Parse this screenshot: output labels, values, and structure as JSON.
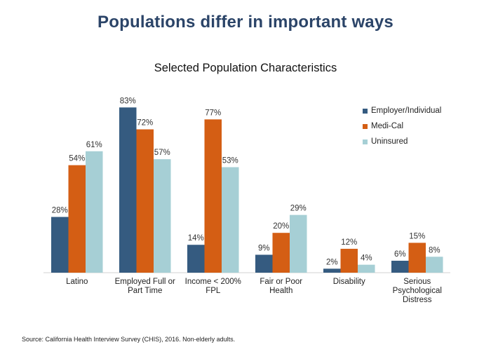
{
  "slide_title": "Populations differ in important ways",
  "source": "Source: California Health Interview Survey (CHIS), 2016. Non-elderly adults.",
  "colors": {
    "employer": "#355b80",
    "medical": "#d45e14",
    "uninsured": "#a6cfd5"
  },
  "chart_data": {
    "type": "bar",
    "title": "Selected Population Characteristics",
    "categories": [
      "Latino",
      "Employed Full or\nPart Time",
      "Income < 200%\nFPL",
      "Fair or Poor\nHealth",
      "Disability",
      "Serious\nPsychological\nDistress"
    ],
    "series": [
      {
        "name": "Employer/Individual",
        "values": [
          28,
          83,
          14,
          9,
          2,
          6
        ]
      },
      {
        "name": "Medi-Cal",
        "values": [
          54,
          72,
          77,
          20,
          12,
          15
        ]
      },
      {
        "name": "Uninsured",
        "values": [
          61,
          57,
          53,
          29,
          4,
          8
        ]
      }
    ],
    "value_suffix": "%",
    "ylim": [
      0,
      100
    ],
    "grid": false,
    "legend_position": "right"
  }
}
